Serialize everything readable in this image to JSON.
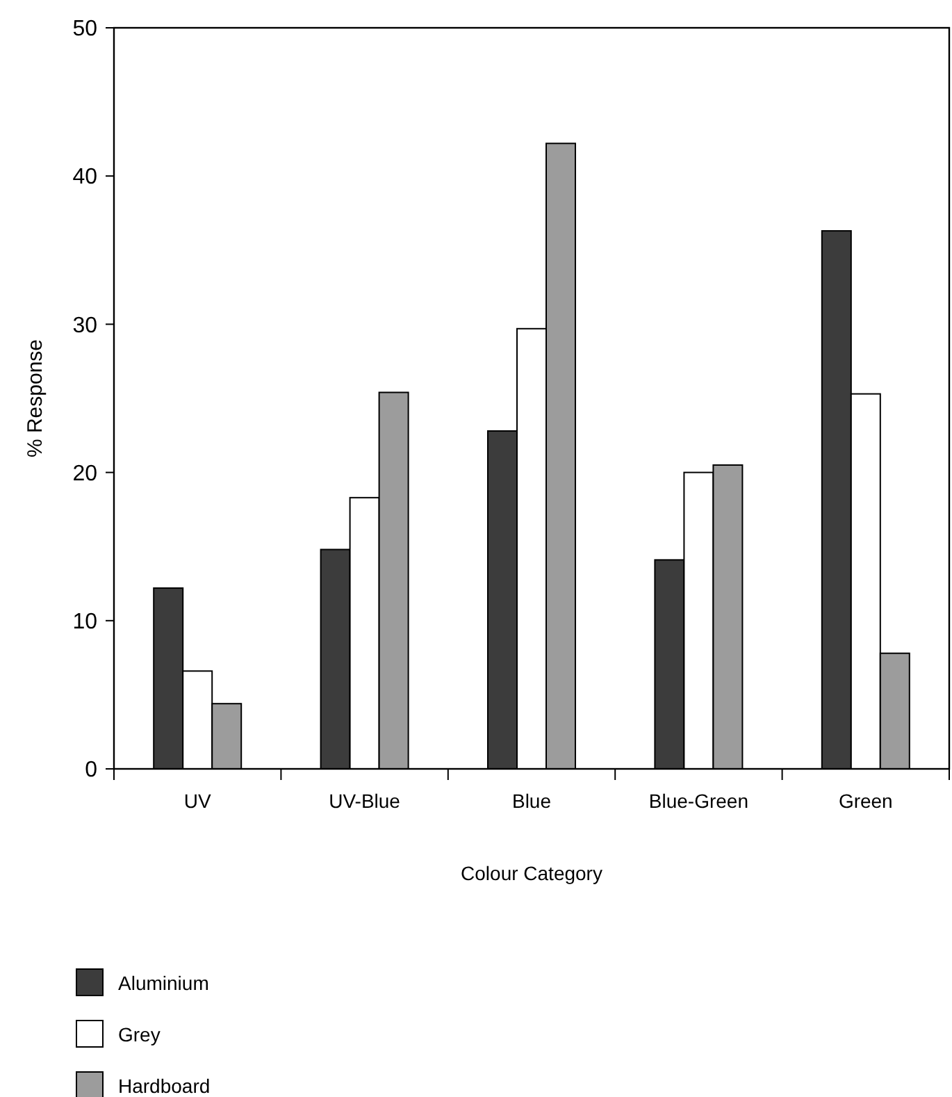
{
  "chart_data": {
    "type": "bar",
    "xlabel": "Colour Category",
    "ylabel": "% Response",
    "categories": [
      "UV",
      "UV-Blue",
      "Blue",
      "Blue-Green",
      "Green"
    ],
    "series": [
      {
        "name": "Aluminium",
        "color": "#3c3c3c",
        "values": [
          12.2,
          14.8,
          22.8,
          14.1,
          36.3
        ]
      },
      {
        "name": "Grey",
        "color": "#ffffff",
        "values": [
          6.6,
          18.3,
          29.7,
          20.0,
          25.3
        ]
      },
      {
        "name": "Hardboard",
        "color": "#9c9c9c",
        "values": [
          4.4,
          25.4,
          42.2,
          20.5,
          7.8
        ]
      }
    ],
    "ylim": [
      0,
      50
    ],
    "yticks": [
      0,
      10,
      20,
      30,
      40,
      50
    ],
    "grid": false,
    "legend": "bottom left"
  }
}
